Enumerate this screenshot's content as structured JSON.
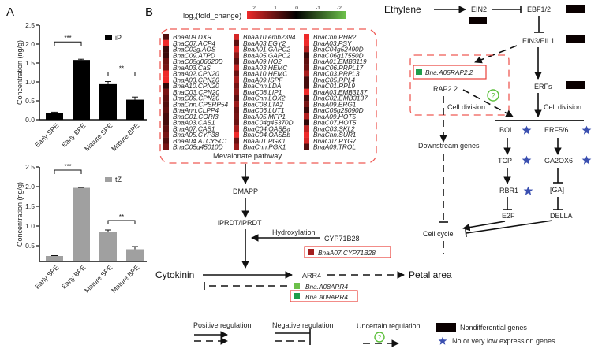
{
  "panels": {
    "a": "A",
    "b": "B"
  },
  "chart_data": [
    {
      "type": "bar",
      "categories": [
        "Early SPE",
        "Early BPE",
        "Mature SPE",
        "Mature BPE"
      ],
      "series": [
        {
          "name": "iP",
          "values": [
            0.17,
            1.58,
            0.94,
            0.53
          ],
          "errors": [
            0.03,
            0.02,
            0.07,
            0.07
          ]
        }
      ],
      "ylabel": "Concentration (ng/g)",
      "ylim": [
        0,
        2.5
      ],
      "yticks": [
        "0.0",
        "0.5",
        "1.0",
        "1.5",
        "2.0",
        "2.5"
      ],
      "significance": [
        {
          "between": [
            0,
            1
          ],
          "label": "***"
        },
        {
          "between": [
            2,
            3
          ],
          "label": "**"
        }
      ],
      "color": "#000000",
      "legend": "top-right"
    },
    {
      "type": "bar",
      "categories": [
        "Early SPE",
        "Early BPE",
        "Mature SPE",
        "Mature BPE"
      ],
      "series": [
        {
          "name": "tZ",
          "values": [
            0.24,
            1.97,
            0.85,
            0.41
          ],
          "errors": [
            0.01,
            0.01,
            0.05,
            0.07
          ]
        }
      ],
      "ylabel": "Concentration (ng/g)",
      "ylim": [
        0.1,
        2.5
      ],
      "yticks": [
        "0.5",
        "1.0",
        "1.5",
        "2.0",
        "2.5"
      ],
      "significance": [
        {
          "between": [
            0,
            1
          ],
          "label": "***"
        },
        {
          "between": [
            2,
            3
          ],
          "label": "**"
        }
      ],
      "color": "#a0a0a0",
      "legend": "top-right"
    }
  ],
  "heatmap": {
    "scale_title": "log2(fold_change)",
    "scale_ticks": [
      "2",
      "1",
      "0",
      "-1",
      "-2"
    ],
    "colors": {
      "high": "#ee2a2a",
      "mid": "#000000",
      "low": "#6cc04a"
    },
    "footer": "Mevalonate pathway",
    "columns": [
      [
        [
          "BnaA09.DXR",
          0.7
        ],
        [
          "BnaC07.ACP4",
          2
        ],
        [
          "BnaC02g.AOS",
          0.5
        ],
        [
          "BnaC09.ATPD",
          0.5
        ],
        [
          "BnaC05g06620D",
          0.9
        ],
        [
          "BnaA03.CaS",
          1.0
        ],
        [
          "BnaA02.CPN20",
          2
        ],
        [
          "BnaA03.CPN20",
          2
        ],
        [
          "BnaA10.CPN20",
          0.4
        ],
        [
          "BnaC03.CPN20",
          1.0
        ],
        [
          "BnaC09.CPN20",
          0.8
        ],
        [
          "BnaCnn.CPSRP54",
          0.7
        ],
        [
          "BnaAnn.CLPP4",
          0.8
        ],
        [
          "BnaC01.CORI3",
          0.6
        ],
        [
          "BnaA03.CAS1",
          0.6
        ],
        [
          "BnaA07.CAS1",
          0.8
        ],
        [
          "BnaA05.CYP38",
          1.0
        ],
        [
          "BnaA04.ATCYSC1",
          0.7
        ],
        [
          "BnaC05g45010D",
          1.0
        ]
      ],
      [
        [
          "BnaA10.emb2394",
          1.8
        ],
        [
          "BnaA03.EGY2",
          0.8
        ],
        [
          "BnaA01.GAPC2",
          1.8
        ],
        [
          "BnaA05.GAPC2",
          1.2
        ],
        [
          "BnaA09.HO2",
          0.8
        ],
        [
          "BnaA03.HEMC",
          1.6
        ],
        [
          "BnaA10.HEMC",
          0.9
        ],
        [
          "BnaA09.ISPF",
          1.4
        ],
        [
          "BnaCnn.LDA",
          1.0
        ],
        [
          "BnaC08.LIP1",
          1.2
        ],
        [
          "BnaCnn.LOX2",
          0.8
        ],
        [
          "BnaC08.LTA2",
          1.3
        ],
        [
          "BnaC06.LUT1",
          0.9
        ],
        [
          "BnaA05.MFP1",
          1.0
        ],
        [
          "BnaC04g45370D",
          0.9
        ],
        [
          "BnaC04.OASBa",
          1.4
        ],
        [
          "BnaC04.OASBb",
          2
        ],
        [
          "BnaA01.PGK1",
          0.9
        ],
        [
          "BnaCnn.PGK1",
          1.3
        ]
      ],
      [
        [
          "BnaCnn.PHR2",
          2
        ],
        [
          "BnaA03.PSY",
          2
        ],
        [
          "BnaC04g52490D",
          1.5
        ],
        [
          "BnaC06g17550D",
          0.5
        ],
        [
          "BnaA01.EMB3119",
          0.8
        ],
        [
          "BnaC06.PRPL17",
          0.9
        ],
        [
          "BnaC03.PRPL3",
          1.4
        ],
        [
          "BnaC05.RPL4",
          0.6
        ],
        [
          "BnaC01.RPL9",
          0.6
        ],
        [
          "BnaA03.EMB3137",
          2
        ],
        [
          "BnaC02.EMB3137",
          0.6
        ],
        [
          "BnaA09.ERG1",
          1.0
        ],
        [
          "BnaC05g25090D",
          0.5
        ],
        [
          "BnaA09.HOT5",
          1.5
        ],
        [
          "BnaC07.HOT5",
          0.4
        ],
        [
          "BnaC03.SKL2",
          1.6
        ],
        [
          "BnaCnn.SUR1",
          2
        ],
        [
          "BnaC07.PYG7",
          1.8
        ],
        [
          "BnaA09.TROL",
          0.7
        ]
      ]
    ]
  },
  "cytokinin": {
    "dmapp": "DMAPP",
    "iprdt": "iPRDT/iPRDT",
    "hydroxylation": "Hydroxylation",
    "cyp": "CYP71B28",
    "cyp_gene": "BnaA07.CYP71B28",
    "cytokinin": "Cytokinin",
    "arr4": "ARR4",
    "arr4_a08": "Bna.A08ARR4",
    "arr4_a09": "Bna.A09ARR4",
    "petal_area": "Petal area",
    "gene_colors": {
      "cyp": "#a31d1d",
      "a08": "#6cc04a",
      "a09": "#1e9e4a"
    }
  },
  "ethylene": {
    "ethylene": "Ethylene",
    "ein2": "EIN2",
    "ebf": "EBF1/2",
    "ein3": "EIN3/EIL1",
    "rap_gene": "Bna.A05RAP2.2",
    "rap": "RAP2.2",
    "cell_division_left": "Cell division",
    "downstream": "Downstream genes",
    "erfs": "ERFs",
    "cell_division_right": "Cell division",
    "bol": "BOL",
    "erf56": "ERF5/6",
    "tcp": "TCP",
    "ga2ox6": "GA2OX6",
    "rbr1": "RBR1",
    "ga": "[GA]",
    "e2f": "E2F",
    "della": "DELLA",
    "cell_cycle": "Cell cycle",
    "uncertain_mark": "?",
    "rap_color": "#1e9e4a"
  },
  "legend": {
    "positive": "Positive regulation",
    "negative": "Negative regulation",
    "uncertain": "Uncertain regulation",
    "uncertain_mark": "?",
    "nondiff": "Nondifferential genes",
    "low_expr": "No or very low expression genes",
    "star_color": "#3a4fb0",
    "uncertain_color": "#5bbf3a"
  }
}
